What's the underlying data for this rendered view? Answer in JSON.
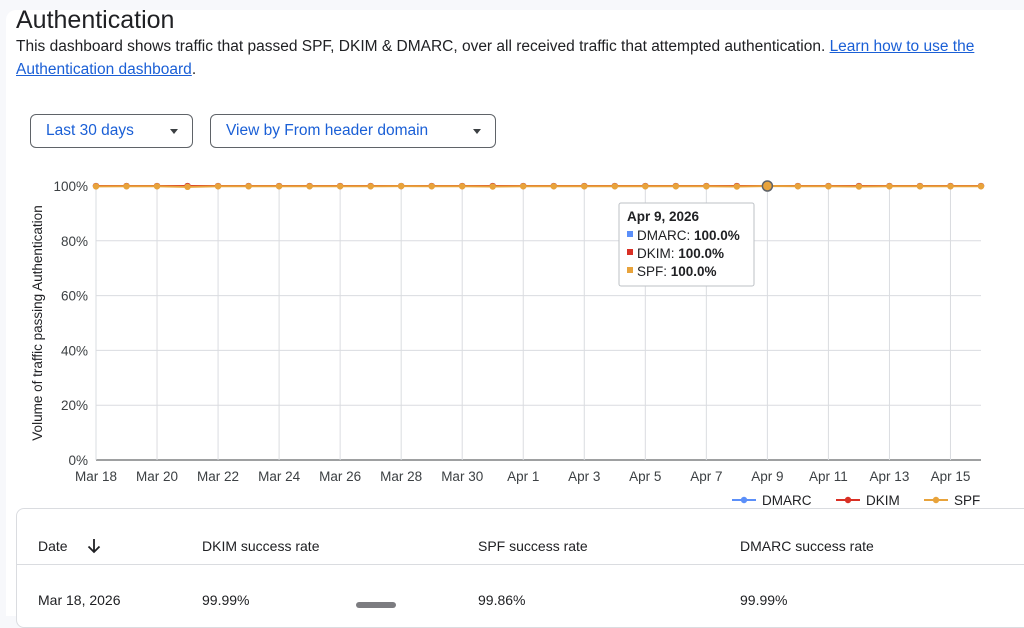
{
  "page": {
    "title": "Authentication",
    "description": "This dashboard shows traffic that passed SPF, DKIM & DMARC, over all received traffic that attempted authentication. ",
    "link_text": "Learn how to use the Authentication dashboard",
    "desc_end": "."
  },
  "filters": {
    "range_label": "Last 30 days",
    "view_label": "View by From header domain"
  },
  "chart_data": {
    "type": "line",
    "ylabel": "Volume of traffic passing Authentication",
    "ylim": [
      0,
      100
    ],
    "y_ticks": [
      "0%",
      "20%",
      "40%",
      "60%",
      "80%",
      "100%"
    ],
    "x": [
      "Mar 18",
      "Mar 19",
      "Mar 20",
      "Mar 21",
      "Mar 22",
      "Mar 23",
      "Mar 24",
      "Mar 25",
      "Mar 26",
      "Mar 27",
      "Mar 28",
      "Mar 29",
      "Mar 30",
      "Mar 31",
      "Apr 1",
      "Apr 2",
      "Apr 3",
      "Apr 4",
      "Apr 5",
      "Apr 6",
      "Apr 7",
      "Apr 8",
      "Apr 9",
      "Apr 10",
      "Apr 11",
      "Apr 12",
      "Apr 13",
      "Apr 14",
      "Apr 15",
      "Apr 16"
    ],
    "x_tick_labels": [
      "Mar 18",
      "Mar 20",
      "Mar 22",
      "Mar 24",
      "Mar 26",
      "Mar 28",
      "Mar 30",
      "Apr 1",
      "Apr 3",
      "Apr 5",
      "Apr 7",
      "Apr 9",
      "Apr 11",
      "Apr 13",
      "Apr 15"
    ],
    "series": [
      {
        "name": "DMARC",
        "color": "#5b8ff9",
        "values": [
          99.99,
          99.99,
          99.99,
          99.99,
          99.99,
          99.99,
          99.99,
          99.99,
          99.99,
          99.99,
          99.99,
          99.99,
          99.99,
          99.99,
          99.99,
          99.99,
          99.99,
          99.99,
          99.99,
          99.99,
          99.99,
          99.99,
          100,
          99.99,
          99.99,
          99.99,
          99.99,
          99.99,
          99.99,
          99.99
        ]
      },
      {
        "name": "DKIM",
        "color": "#d93025",
        "values": [
          99.99,
          99.99,
          99.99,
          99.99,
          99.99,
          99.99,
          99.99,
          99.99,
          99.99,
          99.99,
          99.99,
          99.99,
          99.99,
          99.99,
          99.99,
          99.99,
          99.99,
          99.99,
          99.99,
          99.99,
          99.99,
          99.99,
          100,
          99.99,
          99.99,
          99.99,
          99.99,
          99.99,
          99.99,
          99.99
        ]
      },
      {
        "name": "SPF",
        "color": "#e8a33b",
        "values": [
          99.86,
          99.9,
          99.9,
          99.7,
          99.9,
          99.9,
          99.9,
          99.9,
          99.9,
          99.9,
          99.95,
          99.9,
          99.9,
          99.8,
          99.9,
          99.9,
          99.9,
          99.9,
          99.9,
          99.9,
          99.9,
          99.8,
          100,
          99.9,
          99.9,
          99.8,
          99.9,
          99.9,
          99.9,
          99.9
        ]
      }
    ],
    "tooltip": {
      "date": "Apr 9, 2026",
      "rows": [
        {
          "label": "DMARC: ",
          "value": "100.0%",
          "color": "#5b8ff9"
        },
        {
          "label": "DKIM: ",
          "value": "100.0%",
          "color": "#d93025"
        },
        {
          "label": "SPF: ",
          "value": "100.0%",
          "color": "#e8a33b"
        }
      ],
      "index": 22
    },
    "legend_position": "bottom-right",
    "grid": true
  },
  "table": {
    "headers": {
      "date": "Date",
      "dkim": "DKIM success rate",
      "spf": "SPF success rate",
      "dmarc": "DMARC success rate"
    },
    "sort_icon": "arrow-down-icon",
    "rows": [
      {
        "date": "Mar 18, 2026",
        "dkim": "99.99%",
        "spf": "99.86%",
        "dmarc": "99.99%"
      }
    ]
  }
}
